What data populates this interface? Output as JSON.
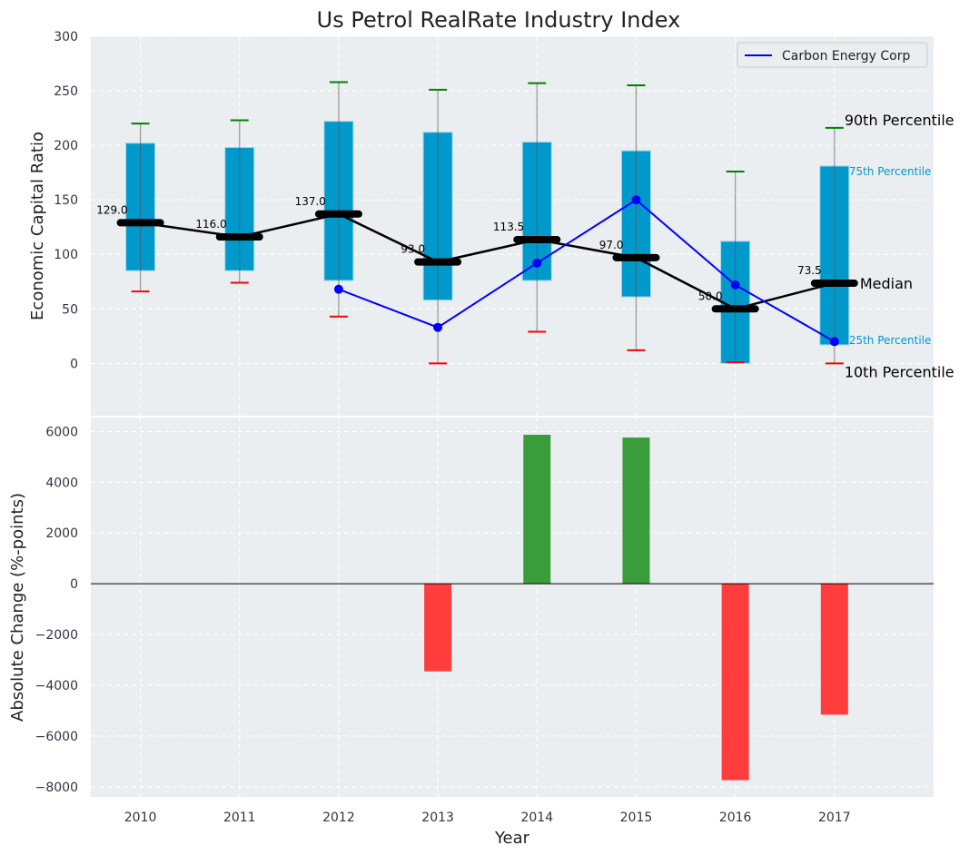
{
  "chart_data": [
    {
      "type": "box",
      "title": "Us Petrol RealRate Industry Index",
      "xlabel": "",
      "ylabel": "Economic Capital Ratio",
      "ylim": [
        -48,
        300
      ],
      "xlim": [
        2009.5,
        2018
      ],
      "yticks": [
        0,
        50,
        100,
        150,
        200,
        250,
        300
      ],
      "grid": true,
      "categories": [
        "2010",
        "2011",
        "2012",
        "2013",
        "2014",
        "2015",
        "2016",
        "2017"
      ],
      "p10": [
        66,
        74,
        43,
        0,
        29,
        12,
        1,
        0
      ],
      "p25": [
        85,
        85,
        76,
        58,
        76,
        61,
        0,
        17
      ],
      "median": [
        129.0,
        116.0,
        137.0,
        93.0,
        113.5,
        97.0,
        50.0,
        73.5
      ],
      "median_labels": [
        "129.0",
        "116.0",
        "137.0",
        "93.0",
        "113.5",
        "97.0",
        "50.0",
        "73.5"
      ],
      "p75": [
        202,
        198,
        222,
        212,
        203,
        195,
        112,
        181
      ],
      "p90": [
        220,
        223,
        258,
        251,
        257,
        255,
        176,
        216
      ],
      "series": [
        {
          "name": "Carbon Energy Corp",
          "color": "#0000ff",
          "x": [
            "2012",
            "2013",
            "2014",
            "2015",
            "2016",
            "2017"
          ],
          "values": [
            68,
            33,
            92,
            150,
            72,
            20
          ]
        }
      ],
      "legend": {
        "position": "top-right",
        "entries": [
          "Carbon Energy Corp"
        ]
      },
      "annotations": {
        "p90": "90th Percentile",
        "p75": "75th Percentile",
        "median": "Median",
        "p25": "25th Percentile",
        "p10": "10th Percentile"
      },
      "colors": {
        "box": "#0099cc",
        "median": "#000000",
        "p90_cap": "#008000",
        "p10_cap": "#ff0000",
        "background": "#eaeef0"
      }
    },
    {
      "type": "bar",
      "xlabel": "Year",
      "ylabel": "Absolute Change (%-points)",
      "ylim": [
        -8400,
        6550
      ],
      "yticks": [
        -8000,
        -6000,
        -4000,
        -2000,
        0,
        2000,
        4000,
        6000
      ],
      "ytick_labels": [
        "−8000",
        "−6000",
        "−4000",
        "−2000",
        "0",
        "2000",
        "4000",
        "6000"
      ],
      "categories": [
        "2010",
        "2011",
        "2012",
        "2013",
        "2014",
        "2015",
        "2016",
        "2017"
      ],
      "values": [
        null,
        null,
        null,
        -3450,
        5870,
        5760,
        -7740,
        -5160
      ],
      "colors": {
        "positive": "#3a9c3a",
        "negative": "#ff3d3d"
      }
    }
  ]
}
